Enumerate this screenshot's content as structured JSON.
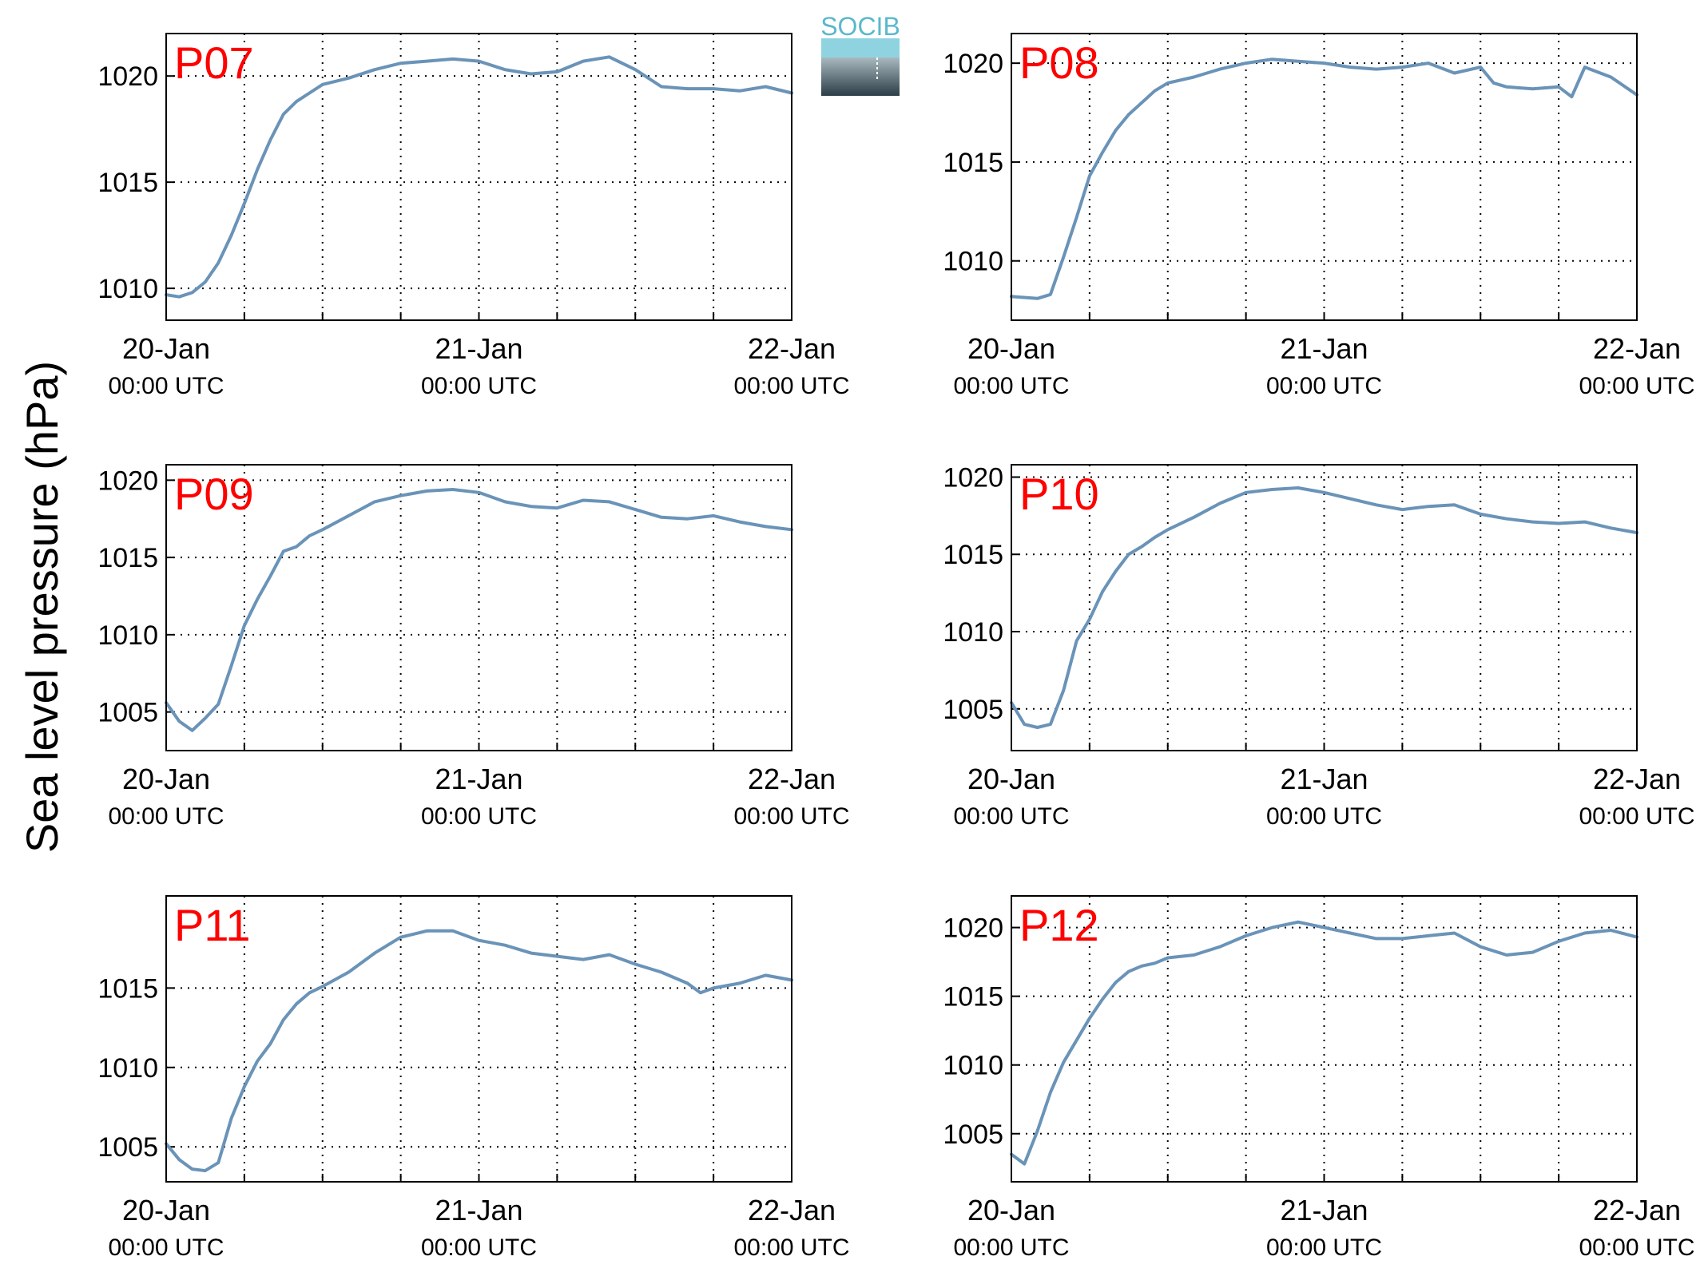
{
  "figure": {
    "ylabel": "Sea level pressure (hPa)",
    "logo_text": "SOCIB",
    "line_color": "#6a93b8",
    "title_color": "#ff0000",
    "logo_color": "#5ab8cc"
  },
  "chart_data": [
    {
      "type": "line",
      "title": "P07",
      "xlim": [
        0,
        48
      ],
      "ylim": [
        1008.5,
        1022
      ],
      "yticks": [
        1010,
        1015,
        1020
      ],
      "x_ticks": [
        {
          "x": 0,
          "date": "20-Jan",
          "time": "00:00 UTC"
        },
        {
          "x": 24,
          "date": "21-Jan",
          "time": "00:00 UTC"
        },
        {
          "x": 48,
          "date": "22-Jan",
          "time": "00:00 UTC"
        }
      ],
      "series": [
        {
          "x": [
            0,
            1,
            2,
            3,
            4,
            5,
            6,
            7,
            8,
            9,
            10,
            11,
            12,
            14,
            16,
            18,
            20,
            22,
            24,
            26,
            28,
            30,
            32,
            34,
            36,
            38,
            40,
            42,
            44,
            46,
            48
          ],
          "y": [
            1009.7,
            1009.6,
            1009.8,
            1010.3,
            1011.2,
            1012.5,
            1014.0,
            1015.6,
            1017.0,
            1018.2,
            1018.8,
            1019.2,
            1019.6,
            1019.9,
            1020.3,
            1020.6,
            1020.7,
            1020.8,
            1020.7,
            1020.3,
            1020.1,
            1020.2,
            1020.7,
            1020.9,
            1020.3,
            1019.5,
            1019.4,
            1019.4,
            1019.3,
            1019.5,
            1019.2
          ]
        }
      ]
    },
    {
      "type": "line",
      "title": "P08",
      "xlim": [
        0,
        48
      ],
      "ylim": [
        1007,
        1021.5
      ],
      "yticks": [
        1010,
        1015,
        1020
      ],
      "x_ticks": [
        {
          "x": 0,
          "date": "20-Jan",
          "time": "00:00 UTC"
        },
        {
          "x": 24,
          "date": "21-Jan",
          "time": "00:00 UTC"
        },
        {
          "x": 48,
          "date": "22-Jan",
          "time": "00:00 UTC"
        }
      ],
      "series": [
        {
          "x": [
            0,
            2,
            3,
            4,
            5,
            6,
            7,
            8,
            9,
            10,
            11,
            12,
            14,
            16,
            18,
            20,
            22,
            24,
            26,
            28,
            30,
            32,
            34,
            36,
            37,
            38,
            40,
            42,
            43,
            44,
            46,
            48
          ],
          "y": [
            1008.2,
            1008.1,
            1008.3,
            1010.2,
            1012.2,
            1014.3,
            1015.5,
            1016.6,
            1017.4,
            1018.0,
            1018.6,
            1019.0,
            1019.3,
            1019.7,
            1020.0,
            1020.2,
            1020.1,
            1020.0,
            1019.8,
            1019.7,
            1019.8,
            1020.0,
            1019.5,
            1019.8,
            1019.0,
            1018.8,
            1018.7,
            1018.8,
            1018.3,
            1019.8,
            1019.3,
            1018.4
          ]
        }
      ]
    },
    {
      "type": "line",
      "title": "P09",
      "xlim": [
        0,
        48
      ],
      "ylim": [
        1002.5,
        1021
      ],
      "yticks": [
        1005,
        1010,
        1015,
        1020
      ],
      "x_ticks": [
        {
          "x": 0,
          "date": "20-Jan",
          "time": "00:00 UTC"
        },
        {
          "x": 24,
          "date": "21-Jan",
          "time": "00:00 UTC"
        },
        {
          "x": 48,
          "date": "22-Jan",
          "time": "00:00 UTC"
        }
      ],
      "series": [
        {
          "x": [
            0,
            1,
            2,
            3,
            4,
            5,
            6,
            7,
            8,
            9,
            10,
            11,
            12,
            14,
            16,
            18,
            20,
            22,
            24,
            26,
            28,
            30,
            32,
            34,
            36,
            38,
            40,
            42,
            44,
            46,
            48
          ],
          "y": [
            1005.6,
            1004.4,
            1003.8,
            1004.6,
            1005.5,
            1008.0,
            1010.6,
            1012.3,
            1013.8,
            1015.4,
            1015.7,
            1016.4,
            1016.8,
            1017.7,
            1018.6,
            1019.0,
            1019.3,
            1019.4,
            1019.2,
            1018.6,
            1018.3,
            1018.2,
            1018.7,
            1018.6,
            1018.1,
            1017.6,
            1017.5,
            1017.7,
            1017.3,
            1017.0,
            1016.8
          ]
        }
      ]
    },
    {
      "type": "line",
      "title": "P10",
      "xlim": [
        0,
        48
      ],
      "ylim": [
        1002.3,
        1020.8
      ],
      "yticks": [
        1005,
        1010,
        1015,
        1020
      ],
      "x_ticks": [
        {
          "x": 0,
          "date": "20-Jan",
          "time": "00:00 UTC"
        },
        {
          "x": 24,
          "date": "21-Jan",
          "time": "00:00 UTC"
        },
        {
          "x": 48,
          "date": "22-Jan",
          "time": "00:00 UTC"
        }
      ],
      "series": [
        {
          "x": [
            0,
            1,
            2,
            3,
            4,
            5,
            6,
            7,
            8,
            9,
            10,
            11,
            12,
            14,
            16,
            18,
            20,
            22,
            24,
            26,
            28,
            30,
            32,
            34,
            36,
            38,
            40,
            42,
            44,
            46,
            48
          ],
          "y": [
            1005.4,
            1004.0,
            1003.8,
            1004.0,
            1006.2,
            1009.4,
            1010.8,
            1012.6,
            1013.9,
            1015.0,
            1015.5,
            1016.1,
            1016.6,
            1017.4,
            1018.3,
            1019.0,
            1019.2,
            1019.3,
            1019.0,
            1018.6,
            1018.2,
            1017.9,
            1018.1,
            1018.2,
            1017.6,
            1017.3,
            1017.1,
            1017.0,
            1017.1,
            1016.7,
            1016.4
          ]
        }
      ]
    },
    {
      "type": "line",
      "title": "P11",
      "xlim": [
        0,
        48
      ],
      "ylim": [
        1002.8,
        1020.8
      ],
      "yticks": [
        1005,
        1010,
        1015
      ],
      "x_ticks": [
        {
          "x": 0,
          "date": "20-Jan",
          "time": "00:00 UTC"
        },
        {
          "x": 24,
          "date": "21-Jan",
          "time": "00:00 UTC"
        },
        {
          "x": 48,
          "date": "22-Jan",
          "time": "00:00 UTC"
        }
      ],
      "series": [
        {
          "x": [
            0,
            1,
            2,
            3,
            4,
            5,
            6,
            7,
            8,
            9,
            10,
            11,
            12,
            14,
            16,
            18,
            20,
            22,
            24,
            26,
            28,
            30,
            32,
            34,
            36,
            38,
            40,
            41,
            42,
            44,
            46,
            48
          ],
          "y": [
            1005.2,
            1004.2,
            1003.6,
            1003.5,
            1004.0,
            1006.8,
            1008.8,
            1010.4,
            1011.5,
            1013.0,
            1014.0,
            1014.7,
            1015.1,
            1016.0,
            1017.2,
            1018.2,
            1018.6,
            1018.6,
            1018.0,
            1017.7,
            1017.2,
            1017.0,
            1016.8,
            1017.1,
            1016.5,
            1016.0,
            1015.3,
            1014.7,
            1015.0,
            1015.3,
            1015.8,
            1015.5
          ]
        }
      ]
    },
    {
      "type": "line",
      "title": "P12",
      "xlim": [
        0,
        48
      ],
      "ylim": [
        1001.5,
        1022.3
      ],
      "yticks": [
        1005,
        1010,
        1015,
        1020
      ],
      "x_ticks": [
        {
          "x": 0,
          "date": "20-Jan",
          "time": "00:00 UTC"
        },
        {
          "x": 24,
          "date": "21-Jan",
          "time": "00:00 UTC"
        },
        {
          "x": 48,
          "date": "22-Jan",
          "time": "00:00 UTC"
        }
      ],
      "series": [
        {
          "x": [
            0,
            1,
            2,
            3,
            4,
            5,
            6,
            7,
            8,
            9,
            10,
            11,
            12,
            14,
            16,
            18,
            20,
            22,
            24,
            26,
            28,
            30,
            32,
            34,
            36,
            38,
            40,
            42,
            44,
            46,
            48
          ],
          "y": [
            1003.5,
            1002.8,
            1005.2,
            1008.0,
            1010.2,
            1011.8,
            1013.4,
            1014.8,
            1016.0,
            1016.8,
            1017.2,
            1017.4,
            1017.8,
            1018.0,
            1018.6,
            1019.4,
            1020.0,
            1020.4,
            1020.0,
            1019.6,
            1019.2,
            1019.2,
            1019.4,
            1019.6,
            1018.6,
            1018.0,
            1018.2,
            1019.0,
            1019.6,
            1019.8,
            1019.3
          ]
        }
      ]
    }
  ]
}
